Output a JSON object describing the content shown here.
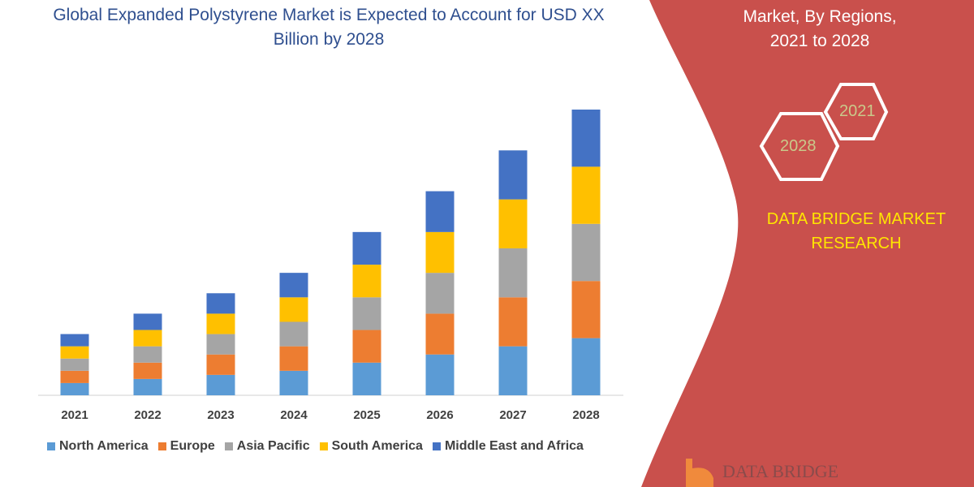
{
  "title": "Global Expanded Polystyrene Market is Expected to Account for USD XX Billion by 2028",
  "panel": {
    "title_lines": [
      "Market, By Regions,",
      "2021 to 2028"
    ],
    "hex_2021": "2021",
    "hex_2028": "2028",
    "brand": "DATA BRIDGE MARKET RESEARCH",
    "logo_text": "DATA BRIDGE",
    "panel_color": "#c9504c"
  },
  "chart_data": {
    "type": "bar",
    "stacked": true,
    "categories": [
      "2021",
      "2022",
      "2023",
      "2024",
      "2025",
      "2026",
      "2027",
      "2028"
    ],
    "series": [
      {
        "name": "North America",
        "color": "#5b9bd5",
        "values": [
          15,
          20,
          25,
          30,
          40,
          50,
          60,
          70
        ]
      },
      {
        "name": "Europe",
        "color": "#ed7d31",
        "values": [
          15,
          20,
          25,
          30,
          40,
          50,
          60,
          70
        ]
      },
      {
        "name": "Asia Pacific",
        "color": "#a5a5a5",
        "values": [
          15,
          20,
          25,
          30,
          40,
          50,
          60,
          70
        ]
      },
      {
        "name": "South America",
        "color": "#ffc000",
        "values": [
          15,
          20,
          25,
          30,
          40,
          50,
          60,
          70
        ]
      },
      {
        "name": "Middle East and Africa",
        "color": "#4472c4",
        "values": [
          15,
          20,
          25,
          30,
          40,
          50,
          60,
          70
        ]
      }
    ],
    "ylim": [
      0,
      360
    ],
    "grid": false,
    "legend": "bottom"
  }
}
